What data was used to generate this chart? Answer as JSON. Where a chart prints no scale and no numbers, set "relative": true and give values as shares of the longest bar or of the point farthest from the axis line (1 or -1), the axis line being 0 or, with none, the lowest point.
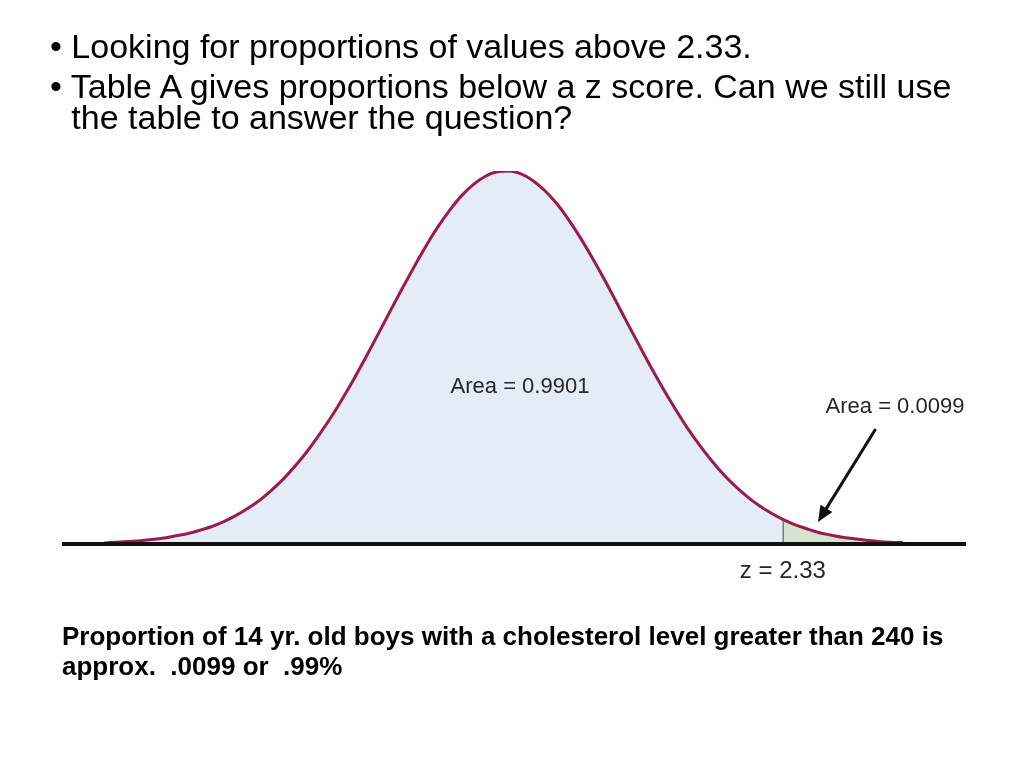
{
  "chart_data": {
    "type": "area",
    "relative": true,
    "categories": [
      null,
      null,
      null,
      null,
      null,
      null,
      null,
      null,
      null,
      null,
      null,
      null,
      null,
      null,
      null,
      null,
      null,
      null,
      null,
      null,
      null,
      null,
      null,
      null,
      null,
      null,
      null,
      null,
      null,
      null,
      null,
      null,
      null,
      null,
      null,
      null,
      null,
      null,
      null,
      null,
      null,
      null,
      null,
      null,
      null,
      null,
      null,
      null,
      null,
      null,
      null,
      null,
      null,
      null,
      null,
      null,
      null,
      null,
      null,
      null,
      null,
      null,
      null,
      null,
      null,
      null,
      null,
      null
    ],
    "series": [
      {
        "color": "#e4ecf5",
        "values": [
          0.003,
          0.005,
          0.007,
          0.009,
          0.012,
          0.016,
          0.022,
          0.028,
          0.037,
          0.047,
          0.06,
          0.076,
          0.095,
          0.117,
          0.144,
          0.174,
          0.209,
          0.248,
          0.292,
          0.339,
          0.391,
          0.446,
          0.504,
          0.564,
          0.625,
          0.685,
          0.743,
          0.799,
          0.85,
          0.895,
          0.934,
          0.964,
          0.986,
          0.998,
          1,
          0.992,
          0.974,
          0.947,
          0.912,
          0.869,
          0.82,
          0.766,
          0.709,
          0.649,
          0.588,
          0.528,
          0.469,
          0.413,
          0.36,
          0.31,
          0.265,
          0.224,
          0.187,
          0.155,
          0.127,
          0.103,
          0.083,
          0.066,
          null,
          null,
          null,
          null,
          null,
          null,
          null,
          null,
          null,
          null
        ]
      },
      {
        "color": "#d3e3cf",
        "values": [
          null,
          null,
          null,
          null,
          null,
          null,
          null,
          null,
          null,
          null,
          null,
          null,
          null,
          null,
          null,
          null,
          null,
          null,
          null,
          null,
          null,
          null,
          null,
          null,
          null,
          null,
          null,
          null,
          null,
          null,
          null,
          null,
          null,
          null,
          null,
          null,
          null,
          null,
          null,
          null,
          null,
          null,
          null,
          null,
          null,
          null,
          null,
          null,
          null,
          null,
          null,
          null,
          null,
          null,
          null,
          null,
          null,
          0.066,
          0.052,
          0.041,
          0.031,
          0.024,
          0.018,
          0.014,
          0.01,
          0.007,
          0.005,
          0.004
        ]
      },
      {
        "type": "line",
        "color": "#9b1b4f",
        "values": [
          0.003,
          0.005,
          0.007,
          0.009,
          0.012,
          0.016,
          0.022,
          0.028,
          0.037,
          0.047,
          0.06,
          0.076,
          0.095,
          0.117,
          0.144,
          0.174,
          0.209,
          0.248,
          0.292,
          0.339,
          0.391,
          0.446,
          0.504,
          0.564,
          0.625,
          0.685,
          0.743,
          0.799,
          0.85,
          0.895,
          0.934,
          0.964,
          0.986,
          0.998,
          1,
          0.992,
          0.974,
          0.947,
          0.912,
          0.869,
          0.82,
          0.766,
          0.709,
          0.649,
          0.588,
          0.528,
          0.469,
          0.413,
          0.36,
          0.31,
          0.265,
          0.224,
          0.187,
          0.155,
          0.127,
          0.103,
          0.083,
          0.066,
          0.052,
          0.041,
          0.031,
          0.024,
          0.018,
          0.014,
          0.01,
          0.007,
          0.005,
          0.004
        ]
      }
    ],
    "annotations": [
      "• Looking for proportions of values above 2.33.",
      "• Table A gives proportions below a z score. Can we still use the table to answer the question?",
      "Proportion of 14 yr. old boys with a cholesterol level greater than 240 is approx.  .0099 or  .99%",
      {
        "text": "Area = 0.9901"
      },
      {
        "text": "Area = 0.0099"
      },
      {
        "text": "z = 2.33"
      }
    ]
  }
}
